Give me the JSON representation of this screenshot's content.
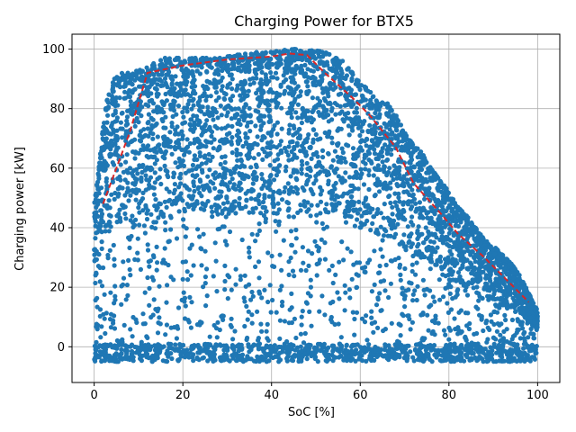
{
  "chart_data": {
    "type": "scatter",
    "title": "Charging Power for BTX5",
    "xlabel": "SoC [%]",
    "ylabel": "Charging power [kW]",
    "xlim": [
      -5,
      105
    ],
    "ylim": [
      -12,
      105
    ],
    "xticks": [
      0,
      20,
      40,
      60,
      80,
      100
    ],
    "yticks": [
      0,
      20,
      40,
      60,
      80,
      100
    ],
    "grid": true,
    "point_color": "#1f77b4",
    "line_color": "#d62728",
    "curve": {
      "name": "",
      "style": "dashed",
      "x": [
        2,
        8,
        12,
        20,
        30,
        40,
        44,
        48,
        52,
        58,
        62,
        68,
        72,
        78,
        82,
        88,
        92,
        98
      ],
      "y": [
        48,
        72,
        92,
        94.5,
        96.5,
        97.5,
        98.5,
        98,
        92,
        84,
        78,
        67,
        55,
        45,
        38,
        30,
        24,
        15
      ]
    },
    "scatter_envelope": {
      "description_points": "dense cloud",
      "upper_x": [
        0,
        1,
        2,
        3,
        4,
        5,
        6,
        8,
        10,
        12,
        14,
        16,
        20,
        24,
        28,
        32,
        36,
        40,
        44,
        48,
        52,
        56,
        60,
        64,
        66,
        68,
        70,
        72,
        74,
        76,
        78,
        80,
        82,
        84,
        86,
        88,
        90,
        92,
        94,
        96,
        98,
        100
      ],
      "upper_y": [
        48,
        60,
        74,
        84,
        89,
        91,
        92,
        92,
        93,
        94,
        96,
        97,
        97,
        97,
        97,
        98,
        99,
        99,
        100,
        100,
        99,
        96,
        89,
        83,
        82,
        78,
        72,
        68,
        65,
        60,
        56,
        52,
        47,
        44,
        40,
        36,
        34,
        31,
        28,
        24,
        18,
        12
      ],
      "lower_y_value": -5
    }
  }
}
